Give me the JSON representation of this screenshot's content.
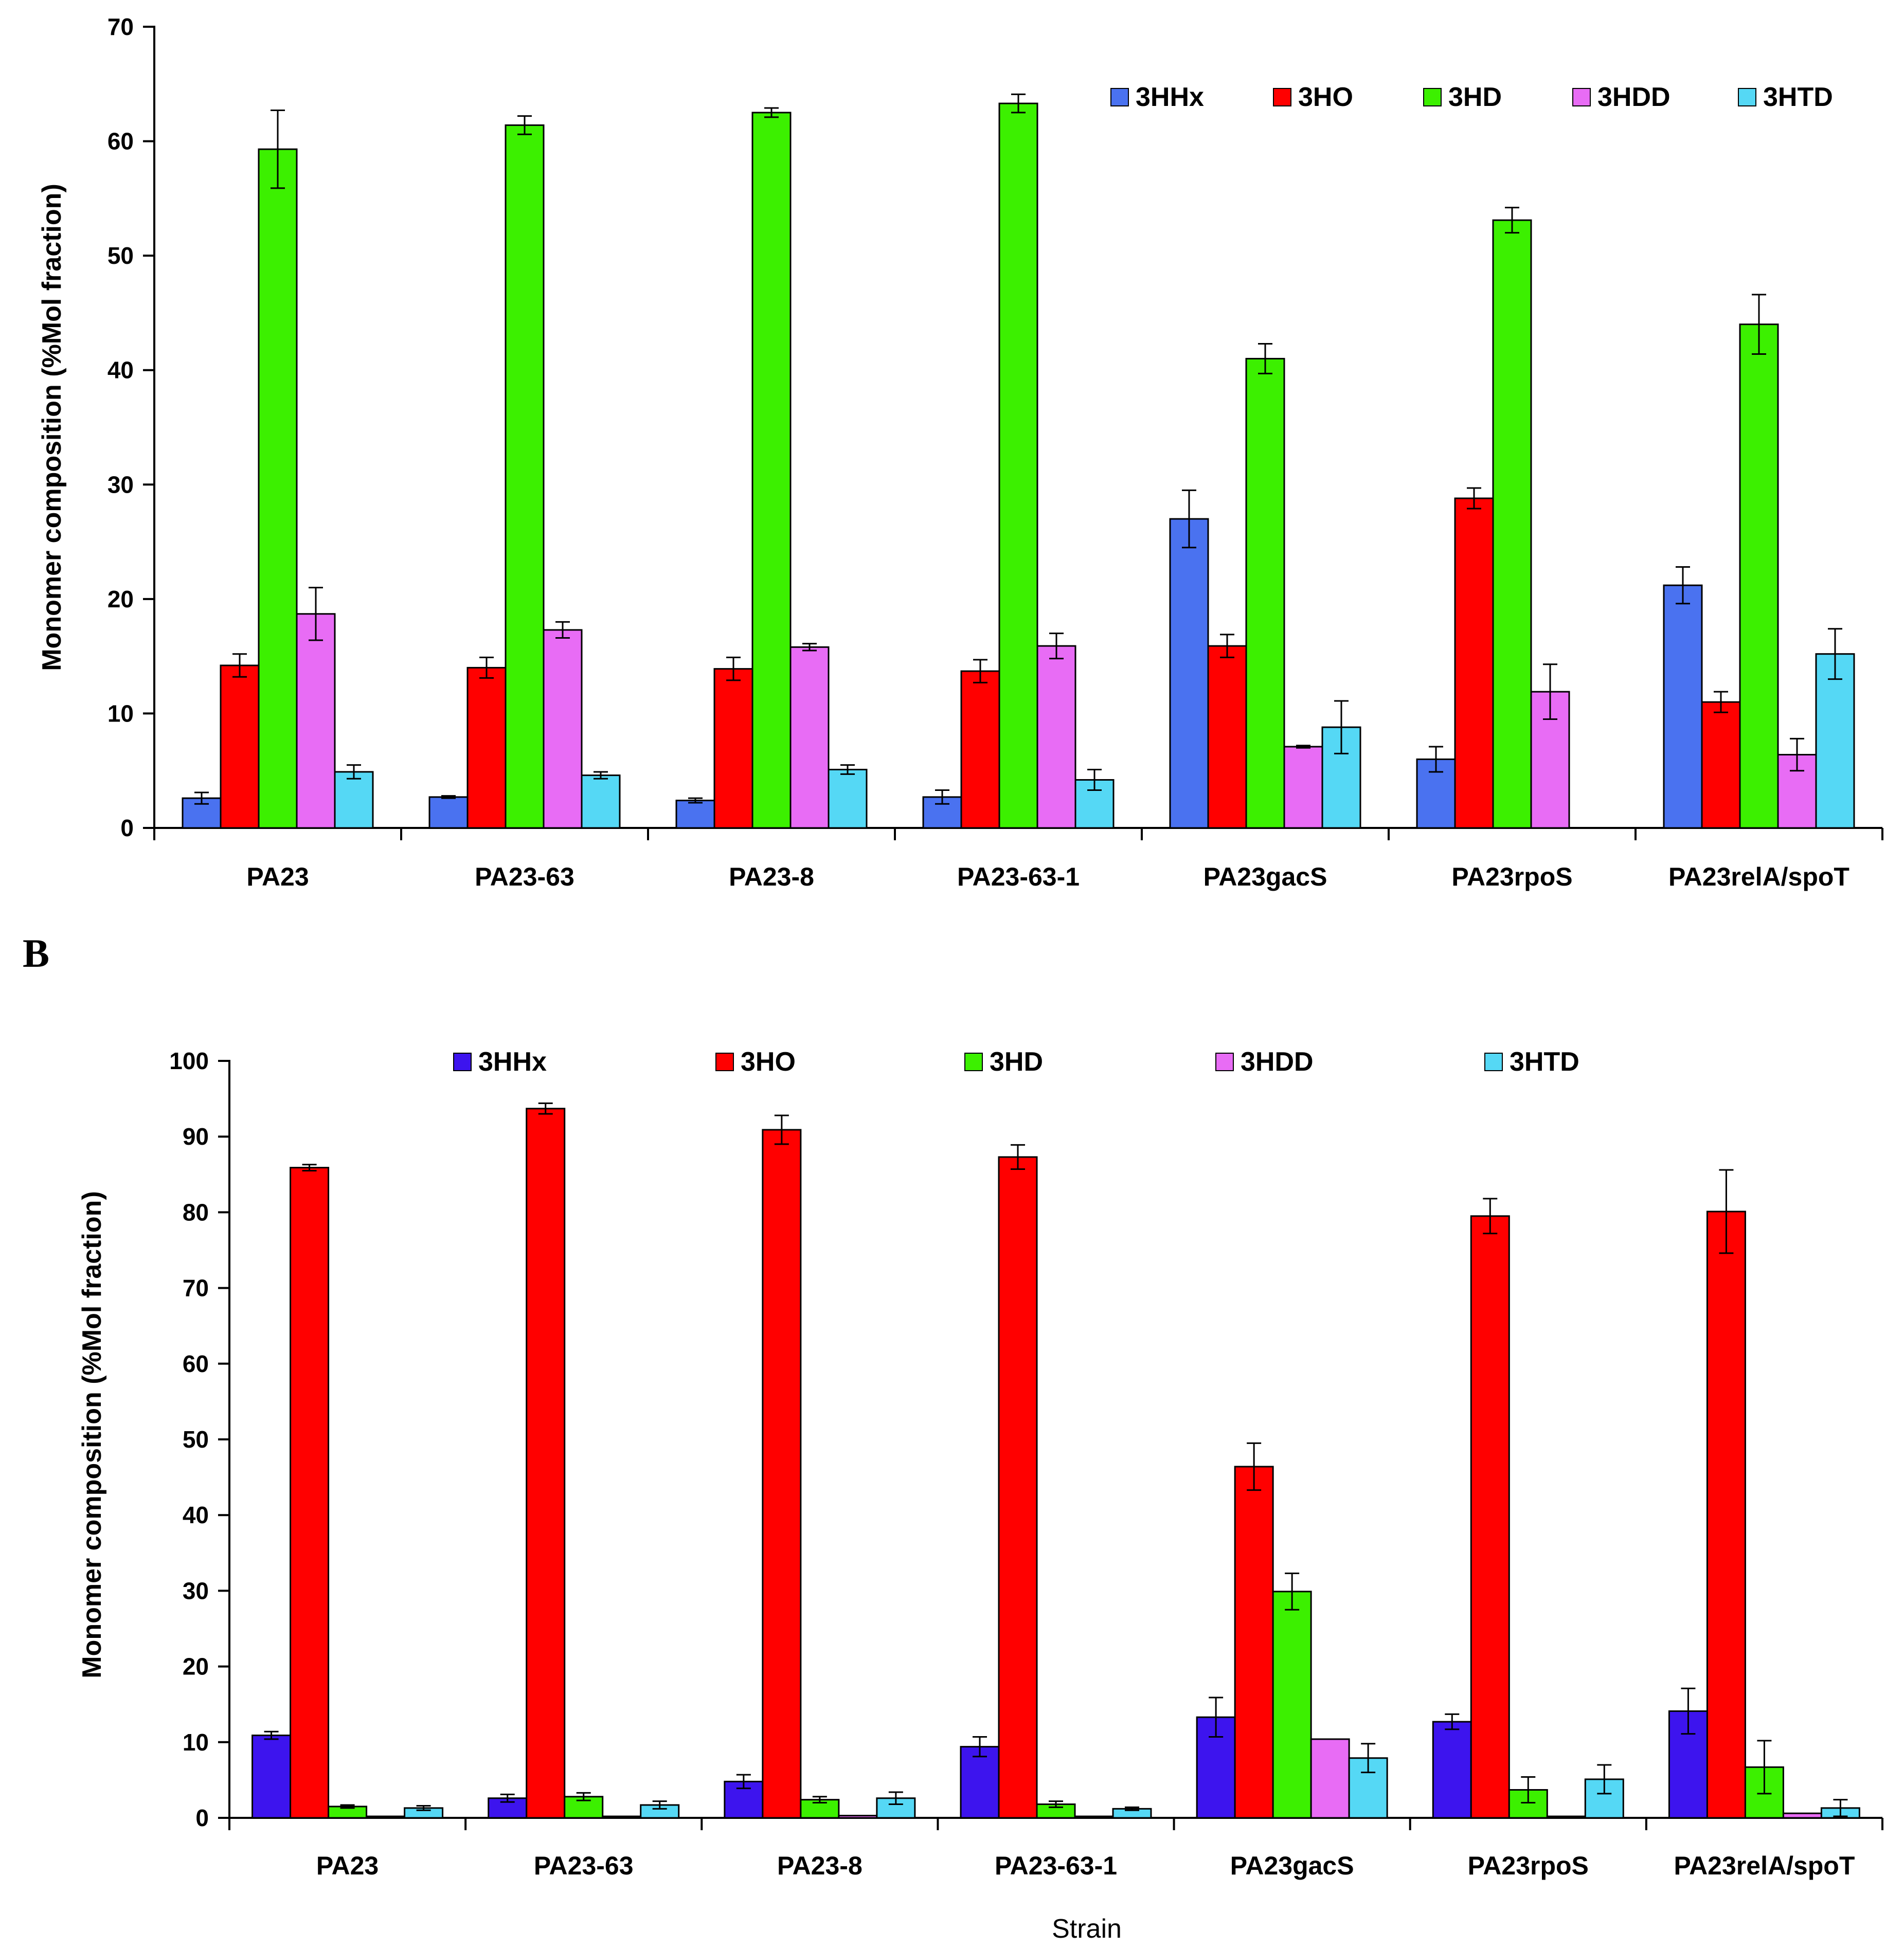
{
  "chart_data": [
    {
      "type": "bar",
      "panel": "",
      "title": "",
      "xlabel": "",
      "ylabel": "Monomer composition (%Mol fraction)",
      "ylim": [
        0,
        70
      ],
      "yticks": [
        0,
        10,
        20,
        30,
        40,
        50,
        60,
        70
      ],
      "grid": false,
      "legend_position": "top-right",
      "categories": [
        "PA23",
        "PA23-63",
        "PA23-8",
        "PA23-63-1",
        "PA23gacS",
        "PA23rpoS",
        "PA23relA/spoT"
      ],
      "series": [
        {
          "name": "3HHx",
          "color": "#4a72f0",
          "values": [
            2.6,
            2.7,
            2.4,
            2.7,
            27.0,
            6.0,
            21.2
          ],
          "errors": [
            0.5,
            0.1,
            0.2,
            0.6,
            2.5,
            1.1,
            1.6
          ]
        },
        {
          "name": "3HO",
          "color": "#ff0000",
          "values": [
            14.2,
            14.0,
            13.9,
            13.7,
            15.9,
            28.8,
            11.0
          ],
          "errors": [
            1.0,
            0.9,
            1.0,
            1.0,
            1.0,
            0.9,
            0.9
          ]
        },
        {
          "name": "3HD",
          "color": "#3cf000",
          "values": [
            59.3,
            61.4,
            62.5,
            63.3,
            41.0,
            53.1,
            44.0
          ],
          "errors": [
            3.4,
            0.8,
            0.4,
            0.8,
            1.3,
            1.1,
            2.6
          ]
        },
        {
          "name": "3HDD",
          "color": "#e86cf5",
          "values": [
            18.7,
            17.3,
            15.8,
            15.9,
            7.1,
            11.9,
            6.4
          ],
          "errors": [
            2.3,
            0.7,
            0.3,
            1.1,
            0.1,
            2.4,
            1.4
          ]
        },
        {
          "name": "3HTD",
          "color": "#55d8f5",
          "values": [
            4.9,
            4.6,
            5.1,
            4.2,
            8.8,
            0,
            15.2
          ],
          "errors": [
            0.6,
            0.3,
            0.4,
            0.9,
            2.3,
            0,
            2.2
          ]
        }
      ]
    },
    {
      "type": "bar",
      "panel": "B",
      "title": "",
      "xlabel": "Strain",
      "ylabel": "Monomer composition (%Mol fraction)",
      "ylim": [
        0,
        100
      ],
      "yticks": [
        0,
        10,
        20,
        30,
        40,
        50,
        60,
        70,
        80,
        90,
        100
      ],
      "grid": false,
      "legend_position": "top",
      "categories": [
        "PA23",
        "PA23-63",
        "PA23-8",
        "PA23-63-1",
        "PA23gacS",
        "PA23rpoS",
        "PA23relA/spoT"
      ],
      "series": [
        {
          "name": "3HHx",
          "color": "#3d14ee",
          "values": [
            10.9,
            2.6,
            4.8,
            9.4,
            13.3,
            12.7,
            14.1
          ],
          "errors": [
            0.5,
            0.5,
            0.9,
            1.3,
            2.6,
            1.0,
            3.0
          ]
        },
        {
          "name": "3HO",
          "color": "#ff0000",
          "values": [
            85.9,
            93.7,
            90.9,
            87.3,
            46.4,
            79.5,
            80.1
          ],
          "errors": [
            0.4,
            0.7,
            1.9,
            1.6,
            3.1,
            2.3,
            5.5
          ]
        },
        {
          "name": "3HD",
          "color": "#3cf000",
          "values": [
            1.5,
            2.8,
            2.4,
            1.8,
            29.9,
            3.7,
            6.7
          ],
          "errors": [
            0.2,
            0.5,
            0.4,
            0.4,
            2.4,
            1.7,
            3.5
          ]
        },
        {
          "name": "3HDD",
          "color": "#e86cf5",
          "values": [
            0.2,
            0.2,
            0.3,
            0.2,
            10.4,
            0.2,
            0.6
          ],
          "errors": [
            0,
            0,
            0,
            0,
            0,
            0,
            0
          ]
        },
        {
          "name": "3HTD",
          "color": "#55d8f5",
          "values": [
            1.3,
            1.7,
            2.6,
            1.2,
            7.9,
            5.1,
            1.3
          ],
          "errors": [
            0.3,
            0.5,
            0.8,
            0.2,
            1.9,
            1.9,
            1.1
          ]
        }
      ]
    }
  ]
}
